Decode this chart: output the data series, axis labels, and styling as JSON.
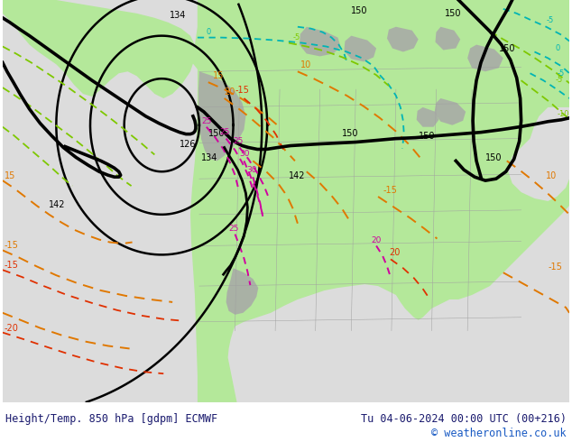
{
  "title_left": "Height/Temp. 850 hPa [gdpm] ECMWF",
  "title_right": "Tu 04-06-2024 00:00 UTC (00+216)",
  "copyright": "© weatheronline.co.uk",
  "ocean_color": "#dcdcdc",
  "land_green_color": "#b4e89a",
  "gray_terrain_color": "#a8a8a8",
  "bottom_bar_color": "#ffffff",
  "text_color": "#1a1a6e",
  "copyright_color": "#1a5bc4",
  "figsize": [
    6.34,
    4.9
  ],
  "dpi": 100,
  "font_size_bottom": 8.5,
  "black_lw": 2.0,
  "cyan_color": "#00b4b4",
  "lime_color": "#7ec800",
  "orange_color": "#e07800",
  "red_color": "#e03000",
  "magenta_color": "#d000a0"
}
